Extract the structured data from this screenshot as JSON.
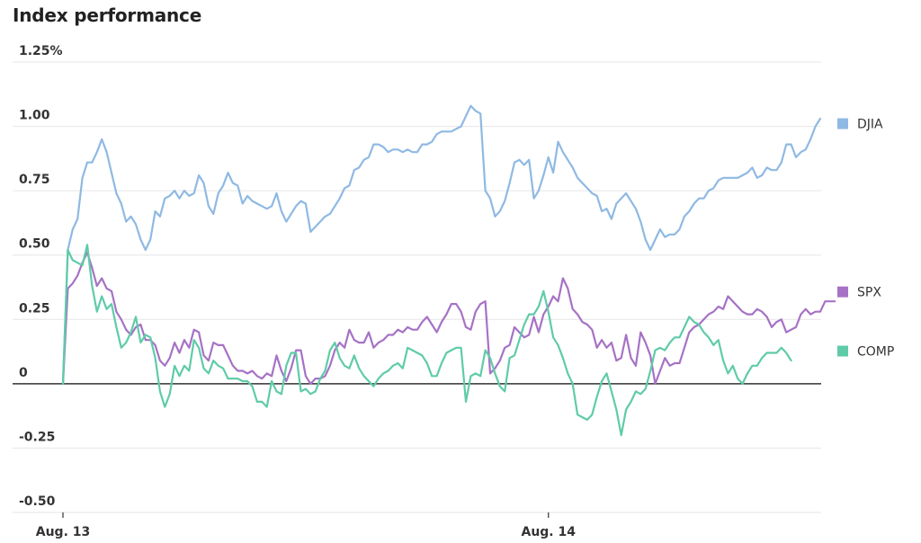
{
  "chart_data": {
    "type": "line",
    "title": "Index performance",
    "xlabel": "",
    "ylabel": "",
    "y_unit_label": "1.25%",
    "ylim": [
      -0.5,
      1.25
    ],
    "yticks": [
      {
        "value": 1.25,
        "label": "1.25%"
      },
      {
        "value": 1.0,
        "label": "1.00"
      },
      {
        "value": 0.75,
        "label": "0.75"
      },
      {
        "value": 0.5,
        "label": "0.50"
      },
      {
        "value": 0.25,
        "label": "0.25"
      },
      {
        "value": 0,
        "label": "0"
      },
      {
        "value": -0.25,
        "label": "-0.25"
      },
      {
        "value": -0.5,
        "label": "-0.50"
      }
    ],
    "xlim": [
      -1,
      188
    ],
    "xticks": [
      {
        "value": 0,
        "label": "Aug. 13"
      },
      {
        "value": 100,
        "label": "Aug. 14"
      }
    ],
    "grid": true,
    "legend_position": "right, at series end",
    "series": [
      {
        "name": "DJIA",
        "color": "#8fb9e3",
        "values": [
          0,
          0.52,
          0.6,
          0.64,
          0.8,
          0.86,
          0.86,
          0.9,
          0.95,
          0.9,
          0.82,
          0.74,
          0.7,
          0.63,
          0.65,
          0.62,
          0.56,
          0.52,
          0.56,
          0.67,
          0.65,
          0.72,
          0.73,
          0.75,
          0.72,
          0.75,
          0.73,
          0.74,
          0.81,
          0.78,
          0.69,
          0.66,
          0.74,
          0.77,
          0.82,
          0.78,
          0.77,
          0.7,
          0.73,
          0.71,
          0.7,
          0.69,
          0.68,
          0.69,
          0.74,
          0.67,
          0.63,
          0.66,
          0.69,
          0.71,
          0.7,
          0.59,
          0.61,
          0.63,
          0.65,
          0.66,
          0.69,
          0.72,
          0.76,
          0.77,
          0.83,
          0.84,
          0.87,
          0.88,
          0.93,
          0.93,
          0.92,
          0.9,
          0.91,
          0.91,
          0.9,
          0.91,
          0.9,
          0.9,
          0.93,
          0.93,
          0.94,
          0.97,
          0.98,
          0.98,
          0.98,
          0.99,
          1.0,
          1.04,
          1.08,
          1.06,
          1.05,
          0.75,
          0.72,
          0.65,
          0.67,
          0.71,
          0.78,
          0.86,
          0.87,
          0.85,
          0.87,
          0.72,
          0.75,
          0.81,
          0.88,
          0.82,
          0.94,
          0.9,
          0.87,
          0.84,
          0.8,
          0.78,
          0.76,
          0.74,
          0.73,
          0.67,
          0.68,
          0.64,
          0.7,
          0.72,
          0.74,
          0.71,
          0.68,
          0.63,
          0.56,
          0.52,
          0.56,
          0.6,
          0.57,
          0.58,
          0.58,
          0.6,
          0.65,
          0.67,
          0.7,
          0.72,
          0.72,
          0.75,
          0.76,
          0.79,
          0.8,
          0.8,
          0.8,
          0.8,
          0.81,
          0.82,
          0.84,
          0.8,
          0.81,
          0.84,
          0.83,
          0.83,
          0.86,
          0.93,
          0.93,
          0.88,
          0.9,
          0.91,
          0.95,
          1.0,
          1.03
        ]
      },
      {
        "name": "SPX",
        "color": "#a672c5",
        "values": [
          0,
          0.37,
          0.39,
          0.42,
          0.47,
          0.51,
          0.45,
          0.38,
          0.41,
          0.37,
          0.36,
          0.28,
          0.25,
          0.21,
          0.19,
          0.22,
          0.23,
          0.17,
          0.17,
          0.15,
          0.09,
          0.07,
          0.1,
          0.16,
          0.12,
          0.17,
          0.14,
          0.21,
          0.2,
          0.11,
          0.09,
          0.16,
          0.15,
          0.15,
          0.11,
          0.07,
          0.05,
          0.05,
          0.04,
          0.05,
          0.03,
          0.02,
          0.04,
          0.03,
          0.11,
          0.05,
          0.01,
          0.06,
          0.13,
          0.13,
          0.03,
          0.0,
          0.02,
          0.02,
          0.03,
          0.07,
          0.13,
          0.16,
          0.14,
          0.21,
          0.17,
          0.16,
          0.16,
          0.2,
          0.14,
          0.16,
          0.17,
          0.19,
          0.19,
          0.21,
          0.2,
          0.22,
          0.21,
          0.21,
          0.24,
          0.26,
          0.23,
          0.2,
          0.24,
          0.27,
          0.31,
          0.31,
          0.28,
          0.22,
          0.21,
          0.28,
          0.31,
          0.32,
          0.04,
          0.06,
          0.09,
          0.14,
          0.15,
          0.22,
          0.2,
          0.18,
          0.19,
          0.26,
          0.2,
          0.27,
          0.3,
          0.34,
          0.32,
          0.41,
          0.37,
          0.29,
          0.27,
          0.24,
          0.23,
          0.21,
          0.14,
          0.17,
          0.14,
          0.16,
          0.09,
          0.1,
          0.19,
          0.1,
          0.07,
          0.2,
          0.16,
          0.11,
          0.0,
          0.05,
          0.1,
          0.07,
          0.08,
          0.08,
          0.14,
          0.2,
          0.22,
          0.23,
          0.25,
          0.27,
          0.28,
          0.3,
          0.29,
          0.34,
          0.32,
          0.3,
          0.28,
          0.27,
          0.27,
          0.29,
          0.28,
          0.26,
          0.22,
          0.24,
          0.25,
          0.2,
          0.21,
          0.22,
          0.27,
          0.29,
          0.27,
          0.28,
          0.28,
          0.32,
          0.32,
          0.32
        ]
      },
      {
        "name": "COMP",
        "color": "#5fcba9",
        "values": [
          0,
          0.52,
          0.48,
          0.47,
          0.46,
          0.54,
          0.38,
          0.28,
          0.34,
          0.29,
          0.31,
          0.22,
          0.14,
          0.16,
          0.2,
          0.26,
          0.16,
          0.19,
          0.18,
          0.1,
          -0.03,
          -0.09,
          -0.04,
          0.07,
          0.03,
          0.07,
          0.05,
          0.17,
          0.14,
          0.06,
          0.04,
          0.09,
          0.07,
          0.06,
          0.02,
          0.02,
          0.02,
          0.01,
          0.01,
          -0.01,
          -0.07,
          -0.07,
          -0.09,
          0.01,
          -0.03,
          -0.04,
          0.07,
          0.12,
          0.12,
          -0.03,
          -0.02,
          -0.04,
          -0.03,
          0.02,
          0.05,
          0.13,
          0.16,
          0.1,
          0.07,
          0.06,
          0.11,
          0.06,
          0.03,
          0.01,
          -0.01,
          0.02,
          0.04,
          0.05,
          0.07,
          0.08,
          0.06,
          0.14,
          0.13,
          0.12,
          0.11,
          0.08,
          0.03,
          0.03,
          0.08,
          0.12,
          0.13,
          0.14,
          0.14,
          -0.07,
          0.03,
          0.04,
          0.03,
          0.13,
          0.1,
          0.04,
          -0.01,
          -0.03,
          0.1,
          0.11,
          0.17,
          0.23,
          0.27,
          0.27,
          0.3,
          0.36,
          0.28,
          0.18,
          0.15,
          0.1,
          0.04,
          0.0,
          -0.12,
          -0.13,
          -0.14,
          -0.12,
          -0.05,
          0.01,
          0.04,
          -0.03,
          -0.1,
          -0.2,
          -0.1,
          -0.07,
          -0.03,
          -0.04,
          -0.02,
          0.05,
          0.13,
          0.14,
          0.13,
          0.16,
          0.18,
          0.18,
          0.22,
          0.26,
          0.24,
          0.23,
          0.2,
          0.18,
          0.15,
          0.17,
          0.09,
          0.04,
          0.07,
          0.02,
          0.0,
          0.04,
          0.07,
          0.07,
          0.1,
          0.12,
          0.12,
          0.12,
          0.14,
          0.12,
          0.09
        ]
      }
    ]
  }
}
